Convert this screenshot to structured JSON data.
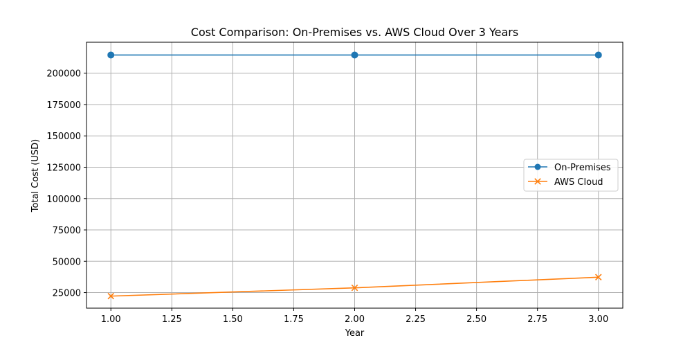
{
  "chart_data": {
    "type": "line",
    "title": "Cost Comparison: On-Premises vs. AWS Cloud Over 3 Years",
    "xlabel": "Year",
    "ylabel": "Total Cost (USD)",
    "xlim": [
      0.9,
      3.1
    ],
    "ylim": [
      12600,
      224700
    ],
    "x_ticks": [
      1.0,
      1.25,
      1.5,
      1.75,
      2.0,
      2.25,
      2.5,
      2.75,
      3.0
    ],
    "x_tick_labels": [
      "1.00",
      "1.25",
      "1.50",
      "1.75",
      "2.00",
      "2.25",
      "2.50",
      "2.75",
      "3.00"
    ],
    "y_ticks": [
      25000,
      50000,
      75000,
      100000,
      125000,
      150000,
      175000,
      200000
    ],
    "y_tick_labels": [
      "25000",
      "50000",
      "75000",
      "100000",
      "125000",
      "150000",
      "175000",
      "200000"
    ],
    "grid": true,
    "legend_position": "center-right",
    "x": [
      1,
      2,
      3
    ],
    "series": [
      {
        "name": "On-Premises",
        "values": [
          214500,
          214500,
          214500
        ],
        "color": "#1f77b4",
        "marker": "circle"
      },
      {
        "name": "AWS Cloud",
        "values": [
          22200,
          28800,
          37300
        ],
        "color": "#ff7f0e",
        "marker": "x"
      }
    ]
  }
}
